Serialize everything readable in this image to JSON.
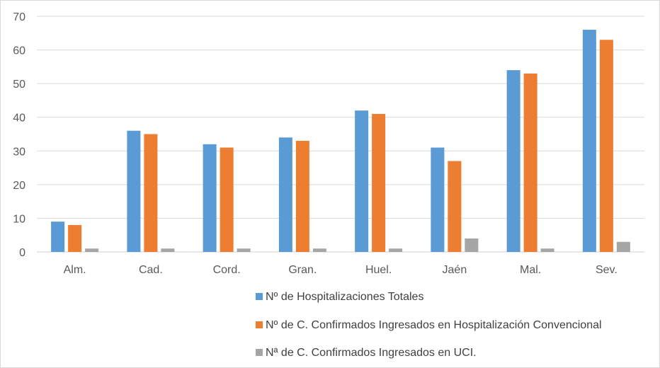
{
  "chart_data": {
    "type": "bar",
    "categories": [
      "Alm.",
      "Cad.",
      "Cord.",
      "Gran.",
      "Huel.",
      "Jaén",
      "Mal.",
      "Sev."
    ],
    "series": [
      {
        "name": "Nº de Hospitalizaciones Totales",
        "color": "#5b9bd5",
        "values": [
          9,
          36,
          32,
          34,
          42,
          31,
          54,
          66
        ]
      },
      {
        "name": "Nº de C. Confirmados Ingresados en Hospitalización Convencional",
        "color": "#ed7d31",
        "values": [
          8,
          35,
          31,
          33,
          41,
          27,
          53,
          63
        ]
      },
      {
        "name": "Nª de C. Confirmados Ingresados en UCI.",
        "color": "#a5a5a5",
        "values": [
          1,
          1,
          1,
          1,
          1,
          4,
          1,
          3
        ]
      }
    ],
    "ylim": [
      0,
      70
    ],
    "yticks": [
      0,
      10,
      20,
      30,
      40,
      50,
      60,
      70
    ],
    "grid": true,
    "legend_position": "bottom",
    "title": "",
    "xlabel": "",
    "ylabel": ""
  }
}
